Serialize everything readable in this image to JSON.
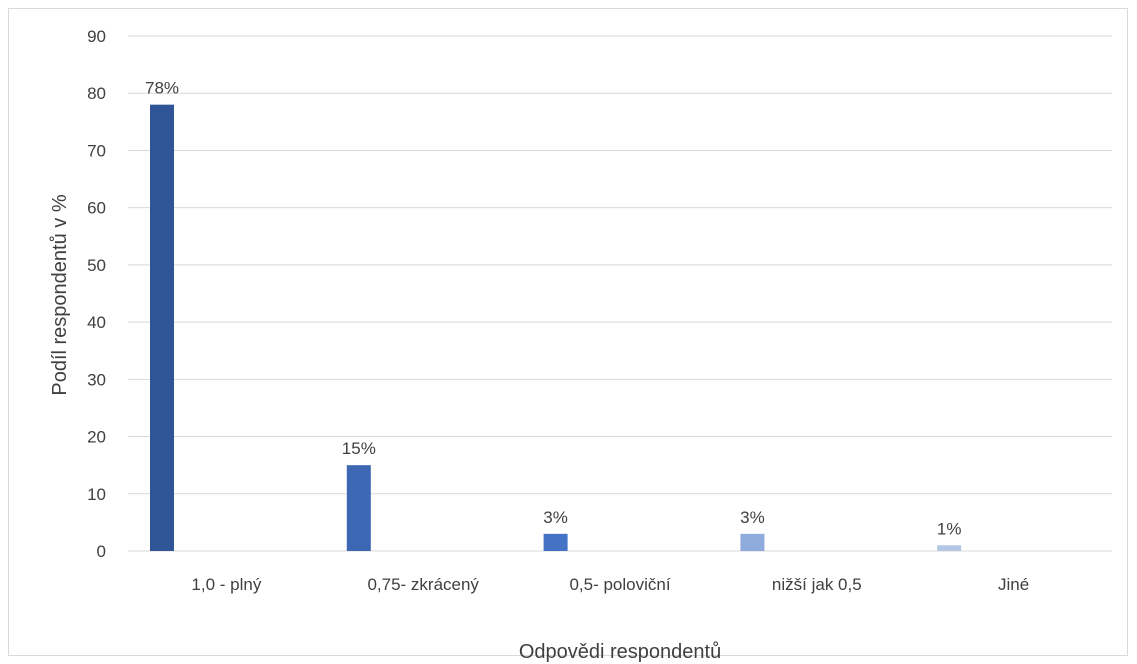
{
  "chart_data": {
    "type": "bar",
    "title": "",
    "xlabel": "Odpovědi respondentů",
    "ylabel": "Podíl respondentů v %",
    "ylim": [
      0,
      90
    ],
    "yticks": [
      0,
      10,
      20,
      30,
      40,
      50,
      60,
      70,
      80,
      90
    ],
    "grid": true,
    "legend": "none",
    "categories": [
      "1,0 - plný",
      "0,75- zkrácený",
      "0,5- poloviční",
      "nižší jak 0,5",
      "Jiné"
    ],
    "values": [
      78,
      15,
      3,
      3,
      1
    ],
    "data_labels": [
      "78%",
      "15%",
      "3%",
      "3%",
      "1%"
    ],
    "bar_colors": [
      "#2f5597",
      "#3d66b3",
      "#4472c4",
      "#8faadc",
      "#b4c7e7"
    ],
    "gridline_color": "#d9d9d9",
    "text_color": "#404040"
  }
}
